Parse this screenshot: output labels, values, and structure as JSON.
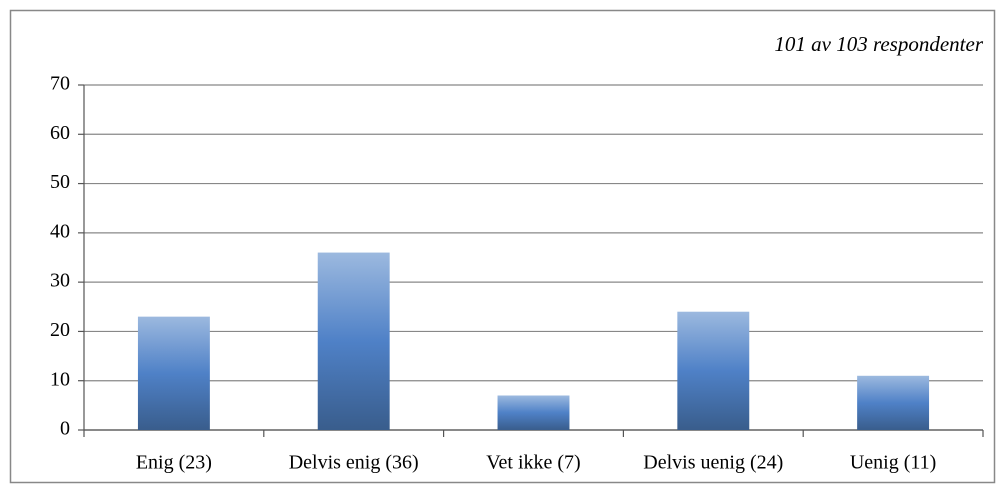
{
  "chart_data": {
    "type": "bar",
    "annotation": "101 av 103 respondenter",
    "categories": [
      "Enig (23)",
      "Delvis enig (36)",
      "Vet ikke (7)",
      "Delvis uenig (24)",
      "Uenig (11)"
    ],
    "values": [
      23,
      36,
      7,
      24,
      11
    ],
    "color": "#4f81c7",
    "ylim": [
      0,
      70
    ],
    "yticks": [
      0,
      10,
      20,
      30,
      40,
      50,
      60,
      70
    ],
    "grid": true
  }
}
